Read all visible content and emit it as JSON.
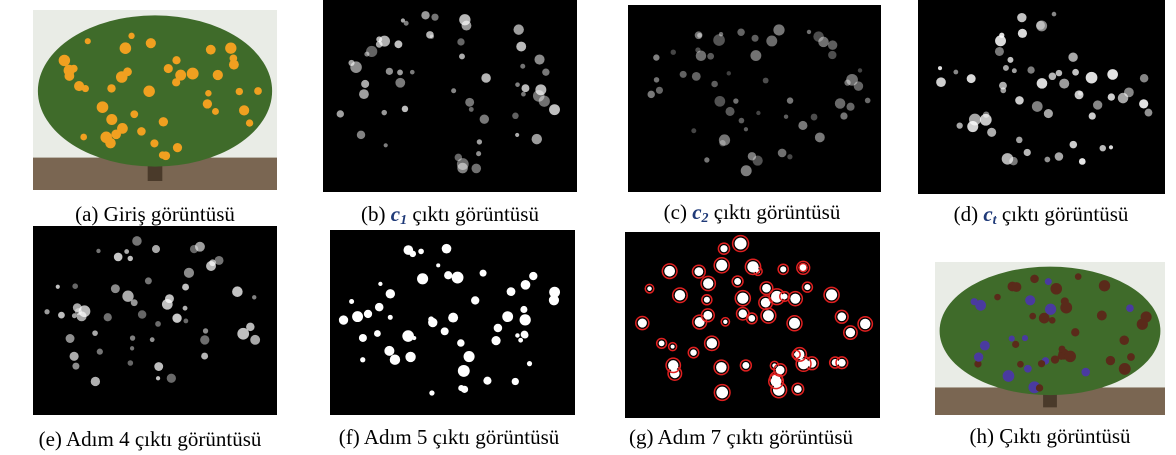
{
  "figures": [
    {
      "label": "(a)",
      "text": "Giriş görüntüsü"
    },
    {
      "label": "(b)",
      "symbol": "c",
      "subscript": "1",
      "text": "çıktı görüntüsü"
    },
    {
      "label": "(c)",
      "symbol": "c",
      "subscript": "2",
      "text": "çıktı görüntüsü"
    },
    {
      "label": "(d)",
      "symbol": "c",
      "subscript": "t",
      "text": "çıktı görüntüsü"
    },
    {
      "label": "(e)",
      "text": "Adım 4 çıktı görüntüsü"
    },
    {
      "label": "(f)",
      "text": "Adım 5 çıktı görüntüsü"
    },
    {
      "label": "(g)",
      "text": "Adım 7 çıktı görüntüsü"
    },
    {
      "label": "(h)",
      "text": "Çıktı görüntüsü"
    }
  ]
}
